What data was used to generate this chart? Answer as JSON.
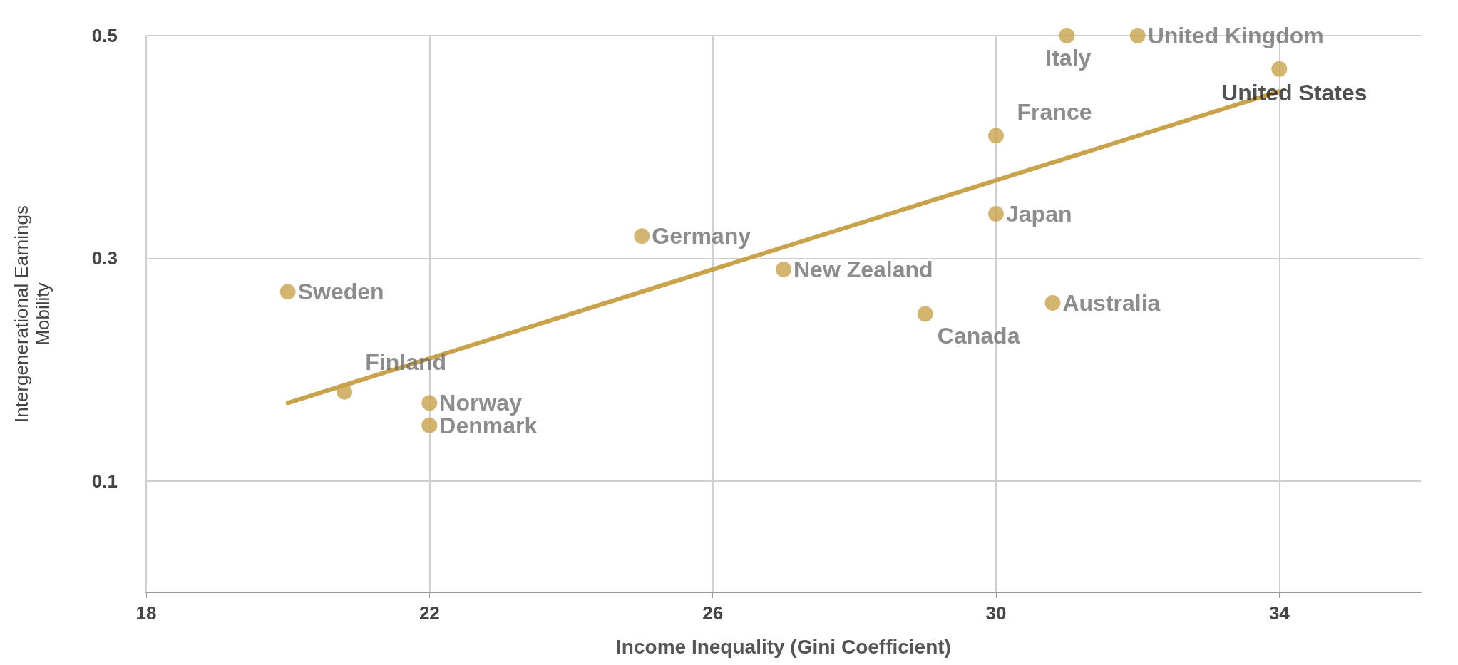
{
  "chart_data": {
    "type": "scatter",
    "xlabel": "Income Inequality (Gini Coefficient)",
    "ylabel": "Intergenerational Earnings\nMobility",
    "xlim": [
      18,
      36
    ],
    "xticks": [
      18,
      22,
      26,
      30,
      34
    ],
    "ylim": [
      0,
      0.5
    ],
    "yticks": [
      0.1,
      0.3,
      0.5
    ],
    "grid": true,
    "series": [
      {
        "marker": "circle",
        "color": "#c9a24c",
        "x": [
          31,
          32,
          34,
          30,
          30,
          25,
          27,
          20,
          29,
          30.8,
          20.8,
          22,
          22
        ],
        "values": [
          0.5,
          0.5,
          0.47,
          0.41,
          0.34,
          0.32,
          0.29,
          0.27,
          0.25,
          0.26,
          0.18,
          0.17,
          0.15
        ]
      },
      {
        "type": "line",
        "marker": "none",
        "color": "#c9a24c",
        "x": [
          20,
          34
        ],
        "values": [
          0.17,
          0.45
        ]
      }
    ],
    "annotations": [
      {
        "text": "Italy",
        "x": 31,
        "y": 0.5
      },
      {
        "text": "United Kingdom",
        "x": 32,
        "y": 0.5
      },
      {
        "text": "United States",
        "x": 34,
        "y": 0.47
      },
      {
        "text": "France",
        "x": 30,
        "y": 0.41
      },
      {
        "text": "Japan",
        "x": 30,
        "y": 0.34
      },
      {
        "text": "Germany",
        "x": 25,
        "y": 0.32
      },
      {
        "text": "New Zealand",
        "x": 27,
        "y": 0.29
      },
      {
        "text": "Sweden",
        "x": 20,
        "y": 0.27
      },
      {
        "text": "Canada",
        "x": 29,
        "y": 0.25
      },
      {
        "text": "Australia",
        "x": 30.8,
        "y": 0.26
      },
      {
        "text": "Finland",
        "x": 20.8,
        "y": 0.18
      },
      {
        "text": "Norway",
        "x": 22,
        "y": 0.17
      },
      {
        "text": "Denmark",
        "x": 22,
        "y": 0.15
      }
    ]
  }
}
